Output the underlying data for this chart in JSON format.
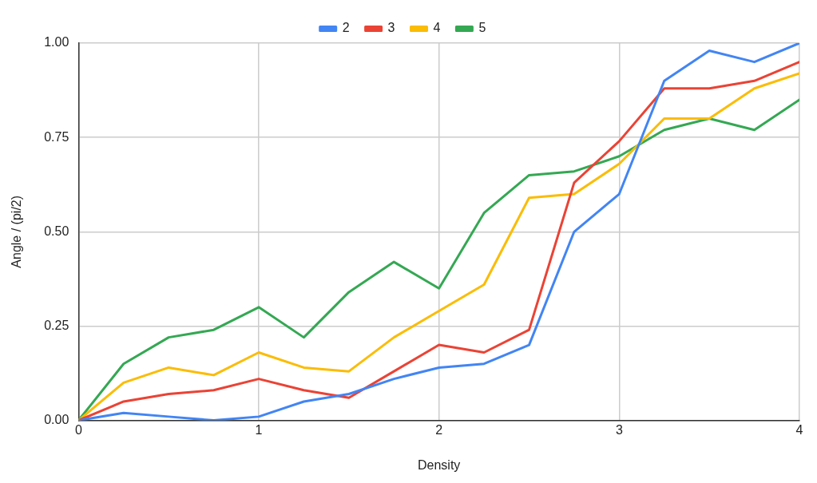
{
  "chart_data": {
    "type": "line",
    "xlabel": "Density",
    "ylabel": "Angle / (pi/2)",
    "x": [
      0,
      0.25,
      0.5,
      0.75,
      1,
      1.25,
      1.5,
      1.75,
      2,
      2.25,
      2.5,
      2.75,
      3,
      3.25,
      3.5,
      3.75,
      4
    ],
    "series": [
      {
        "name": "2",
        "color": "#4285f4",
        "values": [
          0,
          0.02,
          0.01,
          0,
          0.01,
          0.05,
          0.07,
          0.11,
          0.14,
          0.15,
          0.2,
          0.5,
          0.6,
          0.9,
          0.98,
          0.95,
          1.0
        ]
      },
      {
        "name": "3",
        "color": "#ea4335",
        "values": [
          0,
          0.05,
          0.07,
          0.08,
          0.11,
          0.08,
          0.06,
          0.13,
          0.2,
          0.18,
          0.24,
          0.63,
          0.74,
          0.88,
          0.88,
          0.9,
          0.95
        ]
      },
      {
        "name": "4",
        "color": "#fbbc04",
        "values": [
          0,
          0.1,
          0.14,
          0.12,
          0.18,
          0.14,
          0.13,
          0.22,
          0.29,
          0.36,
          0.59,
          0.6,
          0.68,
          0.8,
          0.8,
          0.88,
          0.92
        ]
      },
      {
        "name": "5",
        "color": "#34a853",
        "values": [
          0,
          0.15,
          0.22,
          0.24,
          0.3,
          0.22,
          0.34,
          0.42,
          0.35,
          0.55,
          0.65,
          0.66,
          0.7,
          0.77,
          0.8,
          0.77,
          0.85
        ]
      }
    ],
    "xlim": [
      0,
      4
    ],
    "xticks": [
      0,
      1,
      2,
      3,
      4
    ],
    "ylim": [
      0,
      1
    ],
    "yticks": [
      {
        "value": 0,
        "label": "0.00"
      },
      {
        "value": 0.25,
        "label": "0.25"
      },
      {
        "value": 0.5,
        "label": "0.50"
      },
      {
        "value": 0.75,
        "label": "0.75"
      },
      {
        "value": 1,
        "label": "1.00"
      }
    ],
    "grid": true,
    "legend": "top",
    "marker": "none",
    "line_style": "solid"
  }
}
